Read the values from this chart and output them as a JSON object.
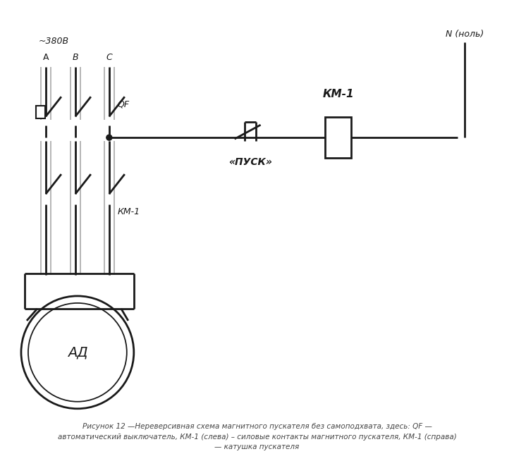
{
  "bg_color": "#ffffff",
  "line_color": "#1a1a1a",
  "gray_line_color": "#b0b0b0",
  "caption": "Рисунок 12 —Нереверсивная схема магнитного пускателя без самоподхвата, здесь: QF —\nавтоматический выключатель, КМ-1 (слева) – силовые контакты магнитного пускателя, КМ-1 (справа)\n— катушка пускателя",
  "label_380": "~380В",
  "label_A": "А",
  "label_B": "В",
  "label_C": "С",
  "label_QF": "QF",
  "label_KM1_left": "КМ-1",
  "label_KM1_right": "КМ-1",
  "label_PUSK": "«ПУСК»",
  "label_N": "N (ноль)",
  "label_AD": "АД"
}
